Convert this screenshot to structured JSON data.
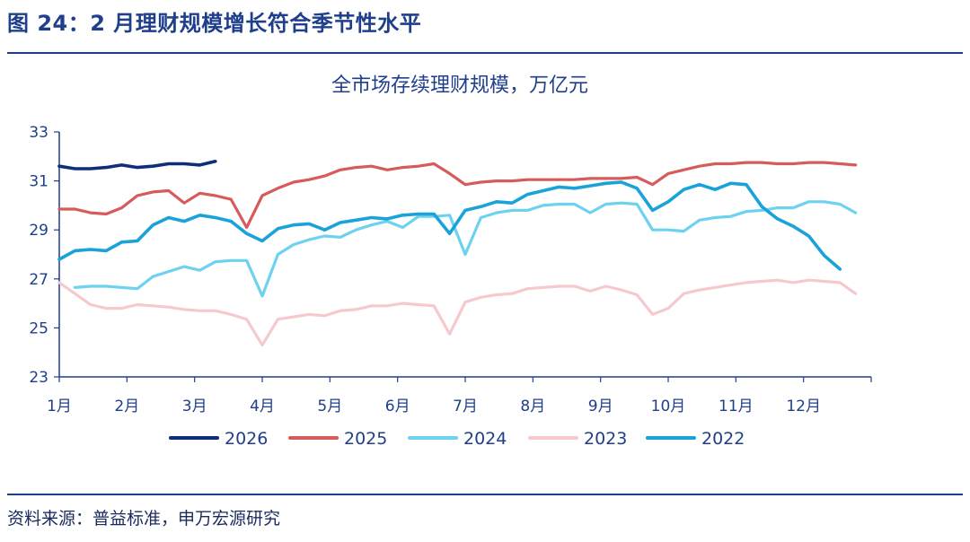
{
  "figure_title": "图 24：2 月理财规模增长符合季节性水平",
  "source": "资料来源：普益标准，申万宏源研究",
  "chart_data": {
    "type": "line",
    "title": "全市场存续理财规模，万亿元",
    "xlabel": "",
    "ylabel": "",
    "ylim": [
      23,
      33
    ],
    "yticks": [
      23,
      25,
      27,
      29,
      31,
      33
    ],
    "xlim": [
      0,
      12
    ],
    "xticks": [
      "1月",
      "2月",
      "3月",
      "4月",
      "5月",
      "6月",
      "7月",
      "8月",
      "9月",
      "10月",
      "11月",
      "12月"
    ],
    "series": [
      {
        "name": "2026",
        "color": "#0d2f7a",
        "values": [
          31.6,
          31.5,
          31.5,
          31.55,
          31.65,
          31.55,
          31.6,
          31.7,
          31.7,
          31.65,
          31.8
        ]
      },
      {
        "name": "2025",
        "color": "#d75b5b",
        "values": [
          29.85,
          29.85,
          29.7,
          29.65,
          29.9,
          30.4,
          30.55,
          30.6,
          30.1,
          30.5,
          30.4,
          30.25,
          29.1,
          30.4,
          30.7,
          30.95,
          31.05,
          31.2,
          31.45,
          31.55,
          31.6,
          31.45,
          31.55,
          31.6,
          31.7,
          31.3,
          30.85,
          30.95,
          31.0,
          31.0,
          31.05,
          31.05,
          31.05,
          31.05,
          31.1,
          31.1,
          31.1,
          31.15,
          30.85,
          31.3,
          31.45,
          31.6,
          31.7,
          31.7,
          31.75,
          31.75,
          31.7,
          31.7,
          31.75,
          31.75,
          31.7,
          31.65
        ]
      },
      {
        "name": "2024",
        "color": "#6dd2ef",
        "values": [
          null,
          26.65,
          26.7,
          26.7,
          26.65,
          26.6,
          27.1,
          27.3,
          27.5,
          27.35,
          27.7,
          27.75,
          27.75,
          26.3,
          28.0,
          28.4,
          28.6,
          28.75,
          28.7,
          29.0,
          29.2,
          29.35,
          29.1,
          29.55,
          29.55,
          29.6,
          28.0,
          29.5,
          29.7,
          29.8,
          29.8,
          30.0,
          30.05,
          30.05,
          29.7,
          30.05,
          30.1,
          30.05,
          29.0,
          29.0,
          28.95,
          29.4,
          29.5,
          29.55,
          29.75,
          29.8,
          29.9,
          29.9,
          30.15,
          30.15,
          30.05,
          29.7
        ]
      },
      {
        "name": "2023",
        "color": "#f5c9cd",
        "values": [
          26.85,
          26.4,
          25.95,
          25.8,
          25.8,
          25.95,
          25.9,
          25.85,
          25.75,
          25.7,
          25.7,
          25.55,
          25.35,
          24.3,
          25.35,
          25.45,
          25.55,
          25.5,
          25.7,
          25.75,
          25.9,
          25.9,
          26.0,
          25.95,
          25.9,
          24.75,
          26.05,
          26.25,
          26.35,
          26.4,
          26.6,
          26.65,
          26.7,
          26.7,
          26.5,
          26.7,
          26.55,
          26.35,
          25.55,
          25.8,
          26.4,
          26.55,
          26.65,
          26.75,
          26.85,
          26.9,
          26.95,
          26.85,
          26.95,
          26.9,
          26.85,
          26.4
        ]
      },
      {
        "name": "2022",
        "color": "#1aa3d8",
        "values": [
          27.8,
          28.15,
          28.2,
          28.15,
          28.5,
          28.55,
          29.2,
          29.5,
          29.35,
          29.6,
          29.5,
          29.35,
          28.85,
          28.55,
          29.05,
          29.2,
          29.25,
          29.0,
          29.3,
          29.4,
          29.5,
          29.45,
          29.6,
          29.65,
          29.65,
          28.85,
          29.8,
          29.95,
          30.15,
          30.1,
          30.45,
          30.6,
          30.75,
          30.7,
          30.8,
          30.9,
          30.95,
          30.7,
          29.8,
          30.15,
          30.65,
          30.85,
          30.65,
          30.9,
          30.85,
          29.95,
          29.45,
          29.15,
          28.75,
          27.95,
          27.4
        ]
      }
    ],
    "legend": {
      "position": "bottom",
      "order": [
        "2026",
        "2025",
        "2024",
        "2023",
        "2022"
      ]
    },
    "grid": false
  }
}
